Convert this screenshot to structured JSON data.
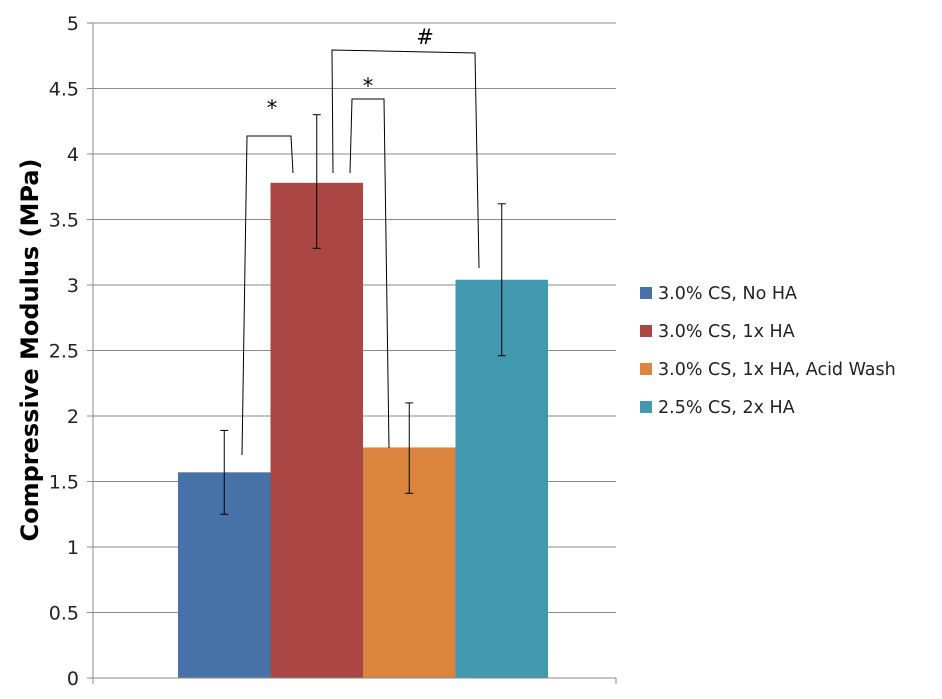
{
  "chart_data": {
    "type": "bar",
    "categories": [
      "3.0% CS, No HA",
      "3.0% CS, 1x HA",
      "3.0% CS, 1x HA, Acid Wash",
      "2.5% CS, 2x HA"
    ],
    "values": [
      1.57,
      3.78,
      1.76,
      3.04
    ],
    "error_low": [
      1.25,
      3.28,
      1.41,
      2.46
    ],
    "error_high": [
      1.89,
      4.3,
      2.1,
      3.62
    ],
    "colors": [
      "#4672A8",
      "#AA4644",
      "#DB843D",
      "#4298AF"
    ],
    "title": "",
    "xlabel": "",
    "ylabel": "Compressive Modulus (MPa)",
    "ylim": [
      0,
      5
    ],
    "yticks": [
      0,
      0.5,
      1,
      1.5,
      2,
      2.5,
      3,
      3.5,
      4,
      4.5,
      5
    ],
    "ytick_labels": [
      "0",
      "0.5",
      "1",
      "1.5",
      "2",
      "2.5",
      "3",
      "3.5",
      "4",
      "4.5",
      "5"
    ],
    "grid": true,
    "legend_position": "right",
    "significance": [
      {
        "between": [
          0,
          1
        ],
        "label": "*"
      },
      {
        "between": [
          1,
          2
        ],
        "label": "*"
      },
      {
        "between": [
          1,
          3
        ],
        "label": "#"
      }
    ]
  }
}
